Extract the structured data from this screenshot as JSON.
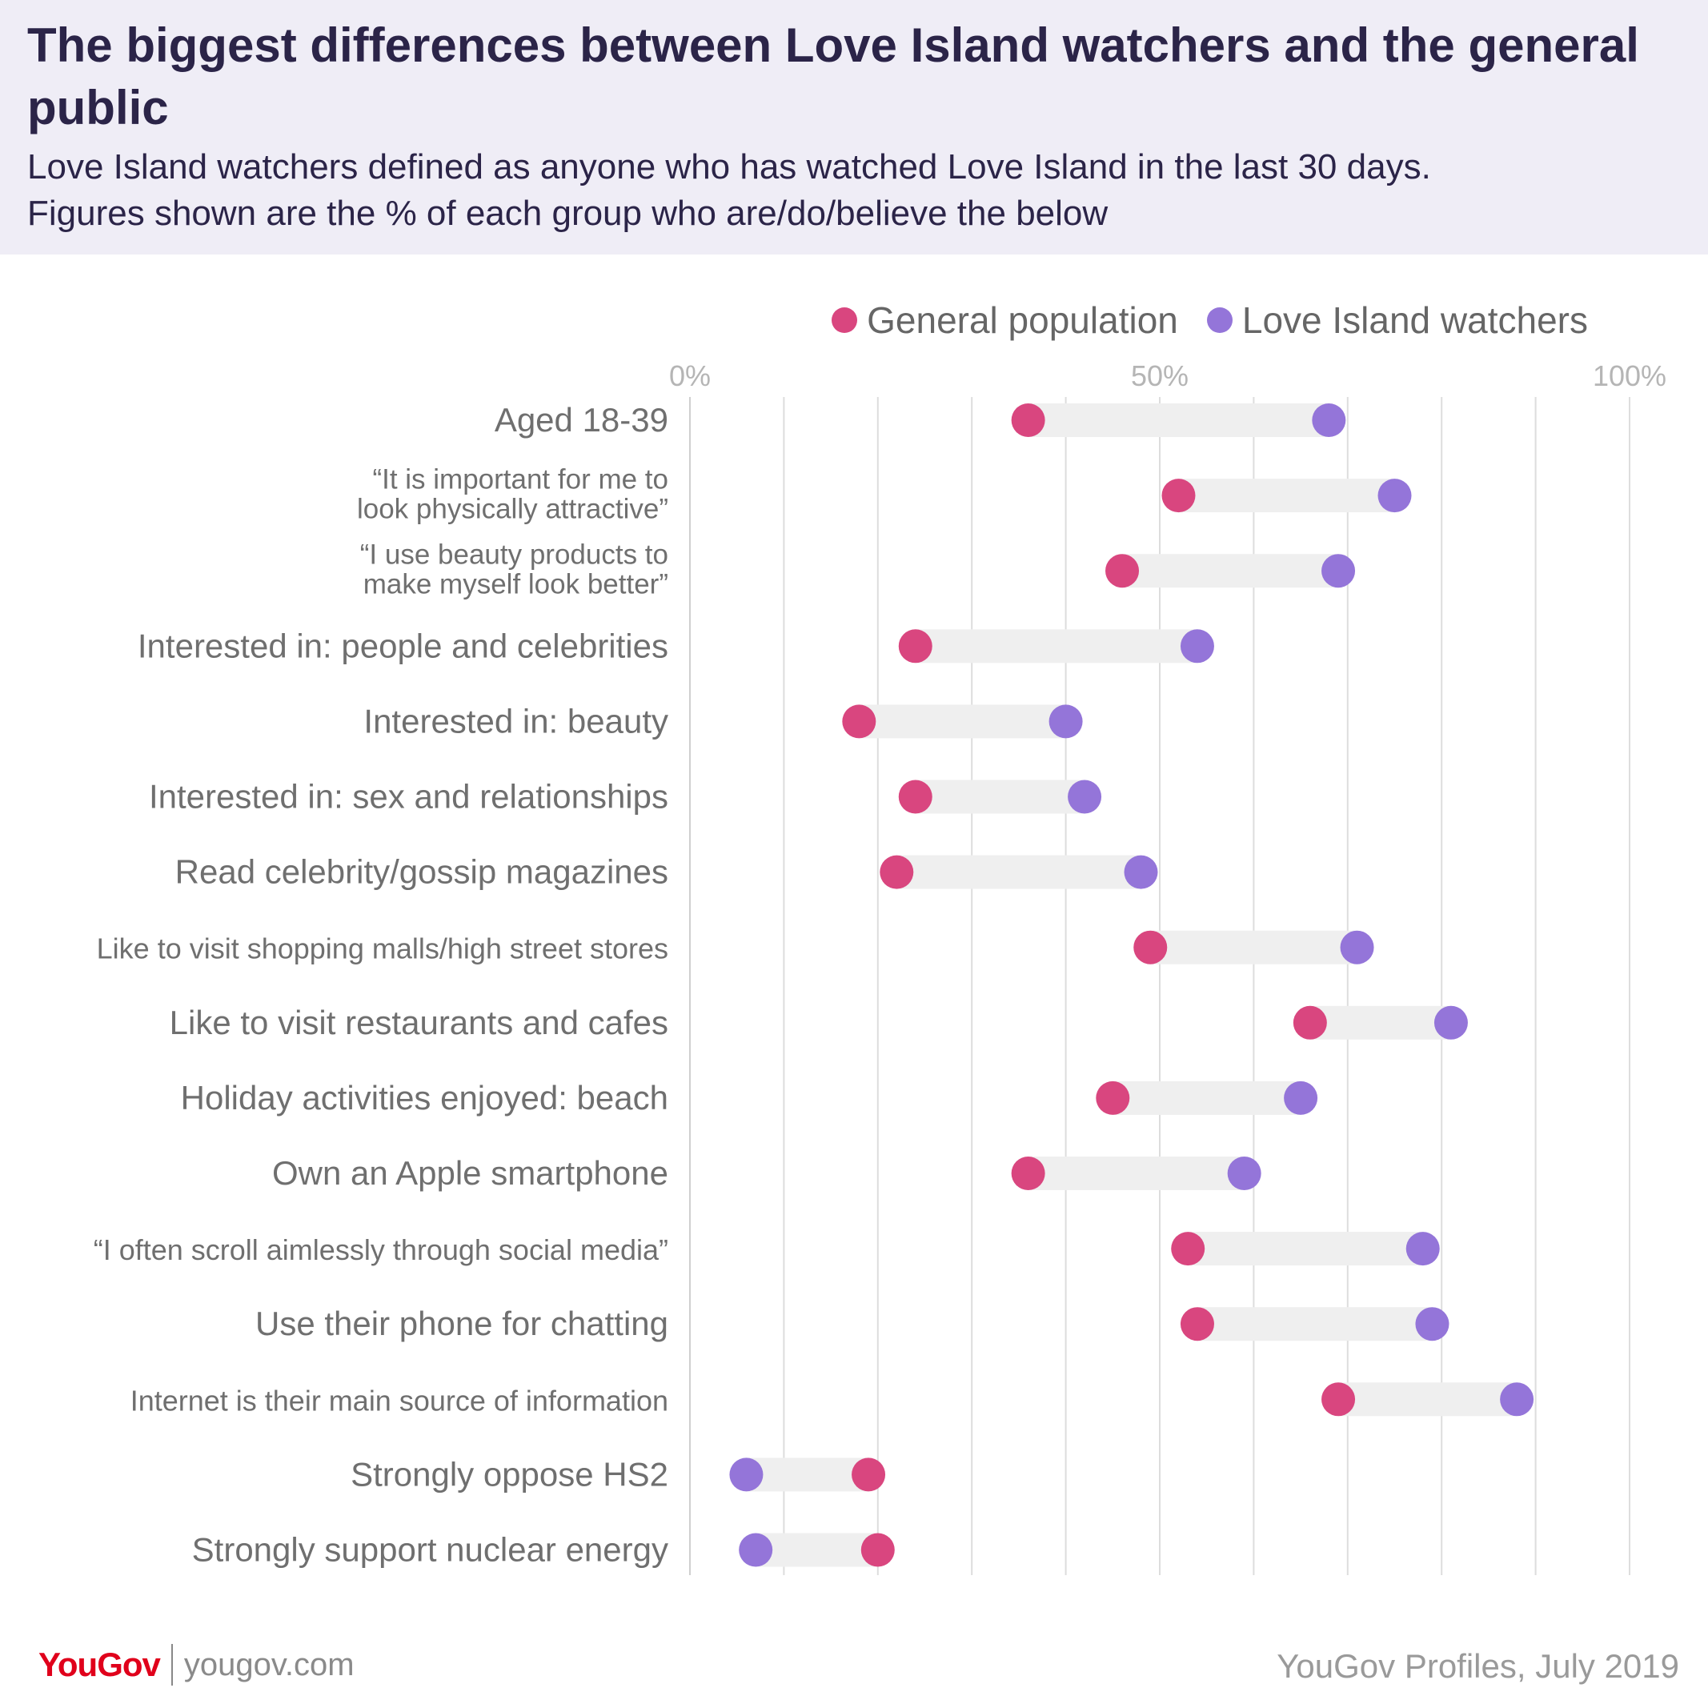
{
  "header": {
    "title": "The biggest differences between Love Island watchers and the general public",
    "subtitle_line1": "Love Island watchers defined as anyone who has watched Love Island in the last 30 days.",
    "subtitle_line2": "Figures shown are the % of each group who are/do/believe the below"
  },
  "colors": {
    "general": "#d9467f",
    "watchers": "#9475d9",
    "range_bar": "#efefef",
    "gridline": "#dddddd",
    "header_bg": "#efedf6"
  },
  "legend": {
    "general_label": "General population",
    "watchers_label": "Love Island watchers"
  },
  "chart_data": {
    "type": "dumbbell",
    "xlim": [
      0,
      100
    ],
    "x_ticks": [
      0,
      50,
      100
    ],
    "x_tick_labels": [
      "0%",
      "50%",
      "100%"
    ],
    "grid": true,
    "legend_position": "top-right",
    "series": [
      {
        "name": "General population",
        "color": "#d9467f"
      },
      {
        "name": "Love Island watchers",
        "color": "#9475d9"
      }
    ],
    "rows": [
      {
        "label": [
          "Aged 18-39"
        ],
        "general": 36,
        "watchers": 68
      },
      {
        "label": [
          "“It is important for me to",
          "look physically attractive”"
        ],
        "general": 52,
        "watchers": 75
      },
      {
        "label": [
          "“I use beauty products to",
          "make myself look better”"
        ],
        "general": 46,
        "watchers": 69
      },
      {
        "label": [
          "Interested in: people and celebrities"
        ],
        "general": 24,
        "watchers": 54
      },
      {
        "label": [
          "Interested in: beauty"
        ],
        "general": 18,
        "watchers": 40
      },
      {
        "label": [
          "Interested in: sex and relationships"
        ],
        "general": 24,
        "watchers": 42
      },
      {
        "label": [
          "Read celebrity/gossip magazines"
        ],
        "general": 22,
        "watchers": 48
      },
      {
        "label": [
          "Like to visit shopping malls/high street stores"
        ],
        "general": 49,
        "watchers": 71
      },
      {
        "label": [
          "Like to visit restaurants and cafes"
        ],
        "general": 66,
        "watchers": 81
      },
      {
        "label": [
          "Holiday activities enjoyed: beach"
        ],
        "general": 45,
        "watchers": 65
      },
      {
        "label": [
          "Own an Apple smartphone"
        ],
        "general": 36,
        "watchers": 59
      },
      {
        "label": [
          "“I often scroll aimlessly through social media”"
        ],
        "general": 53,
        "watchers": 78
      },
      {
        "label": [
          "Use their phone for chatting"
        ],
        "general": 54,
        "watchers": 79
      },
      {
        "label": [
          "Internet is their main source of information"
        ],
        "general": 69,
        "watchers": 88
      },
      {
        "label": [
          "Strongly oppose HS2"
        ],
        "general": 19,
        "watchers": 6
      },
      {
        "label": [
          "Strongly support nuclear energy"
        ],
        "general": 20,
        "watchers": 7
      }
    ]
  },
  "footer": {
    "logo": "YouGov",
    "site": "yougov.com",
    "source": "YouGov Profiles, July 2019"
  }
}
